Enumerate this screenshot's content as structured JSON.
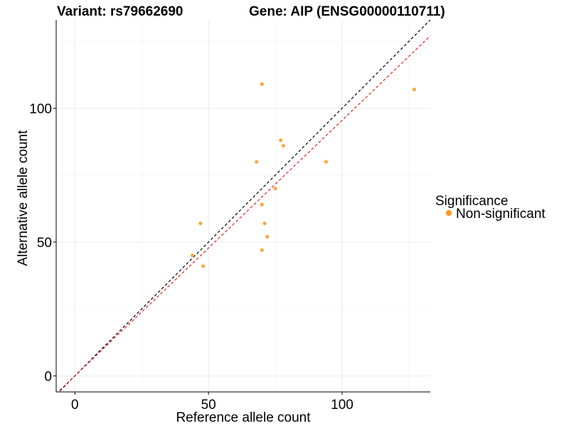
{
  "chart_data": {
    "type": "scatter",
    "title_variant": "Variant: rs79662690",
    "title_gene": "Gene: AIP (ENSG00000110711)",
    "xlabel": "Reference allele count",
    "ylabel": "Alternative allele count",
    "xlim": [
      -7,
      133
    ],
    "ylim": [
      -6,
      133
    ],
    "x_ticks": [
      0,
      50,
      100
    ],
    "y_ticks": [
      0,
      50,
      100
    ],
    "x_minor": [
      25,
      75,
      125
    ],
    "y_minor": [
      25,
      75,
      125
    ],
    "legend": {
      "title": "Significance",
      "entries": [
        {
          "label": "Non-significant",
          "color": "#f7a02d"
        }
      ]
    },
    "series": [
      {
        "name": "Non-significant",
        "color": "#f7a02d",
        "points": [
          {
            "x": 44,
            "y": 45
          },
          {
            "x": 47,
            "y": 57
          },
          {
            "x": 48,
            "y": 41
          },
          {
            "x": 68,
            "y": 80
          },
          {
            "x": 70,
            "y": 109
          },
          {
            "x": 70,
            "y": 64
          },
          {
            "x": 70,
            "y": 47
          },
          {
            "x": 71,
            "y": 57
          },
          {
            "x": 72,
            "y": 52
          },
          {
            "x": 75,
            "y": 70
          },
          {
            "x": 77,
            "y": 88
          },
          {
            "x": 78,
            "y": 86
          },
          {
            "x": 94,
            "y": 80
          },
          {
            "x": 127,
            "y": 107
          }
        ]
      }
    ],
    "reference_lines": [
      {
        "name": "identity",
        "slope": 1.0,
        "intercept": 0,
        "color": "#000000"
      },
      {
        "name": "fit",
        "slope": 0.955,
        "intercept": 0,
        "color": "#e8231f"
      }
    ]
  }
}
